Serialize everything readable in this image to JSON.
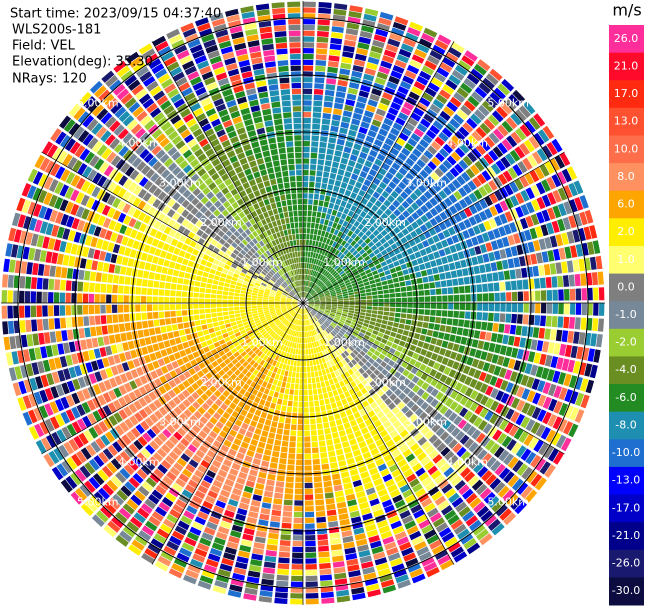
{
  "header": {
    "start_time": "Start time: 2023/09/15 04:37:40",
    "instrument": "WLS200s-181",
    "field": "Field: VEL",
    "elevation": "Elevation(deg): 35.30",
    "nrays_label": "NRays:",
    "nrays": 120
  },
  "range_rings": [
    "1.00km",
    "2.00km",
    "3.00km",
    "4.00km",
    "5.00km"
  ],
  "colorbar": {
    "unit": "m/s",
    "bands": [
      {
        "value": 26,
        "label": "26.0",
        "color": "#ff2e9a"
      },
      {
        "value": 21,
        "label": "21.0",
        "color": "#ff0a2a"
      },
      {
        "value": 17,
        "label": "17.0",
        "color": "#ff2a10"
      },
      {
        "value": 13,
        "label": "13.0",
        "color": "#ff5030"
      },
      {
        "value": 10,
        "label": "10.0",
        "color": "#ff6e4a"
      },
      {
        "value": 8,
        "label": "8.0",
        "color": "#ff9060"
      },
      {
        "value": 6,
        "label": "6.0",
        "color": "#ffa500"
      },
      {
        "value": 2,
        "label": "2.0",
        "color": "#ffee00"
      },
      {
        "value": 1,
        "label": "1.0",
        "color": "#ffff70"
      },
      {
        "value": 0,
        "label": "0.0",
        "color": "#7f7f7f"
      },
      {
        "value": -1,
        "label": "-1.0",
        "color": "#778899"
      },
      {
        "value": -2,
        "label": "-2.0",
        "color": "#9acd32"
      },
      {
        "value": -4,
        "label": "-4.0",
        "color": "#6b8e23"
      },
      {
        "value": -6,
        "label": "-6.0",
        "color": "#228b22"
      },
      {
        "value": -8,
        "label": "-8.0",
        "color": "#1e8fb0"
      },
      {
        "value": -10,
        "label": "-10.0",
        "color": "#1f6fd0"
      },
      {
        "value": -13,
        "label": "-13.0",
        "color": "#0000ff"
      },
      {
        "value": -17,
        "label": "-17.0",
        "color": "#0000c8"
      },
      {
        "value": -21,
        "label": "-21.0",
        "color": "#00008b"
      },
      {
        "value": -26,
        "label": "-26.0",
        "color": "#191970"
      },
      {
        "value": -30,
        "label": "-30.0",
        "color": "#0c0c40"
      }
    ]
  }
}
